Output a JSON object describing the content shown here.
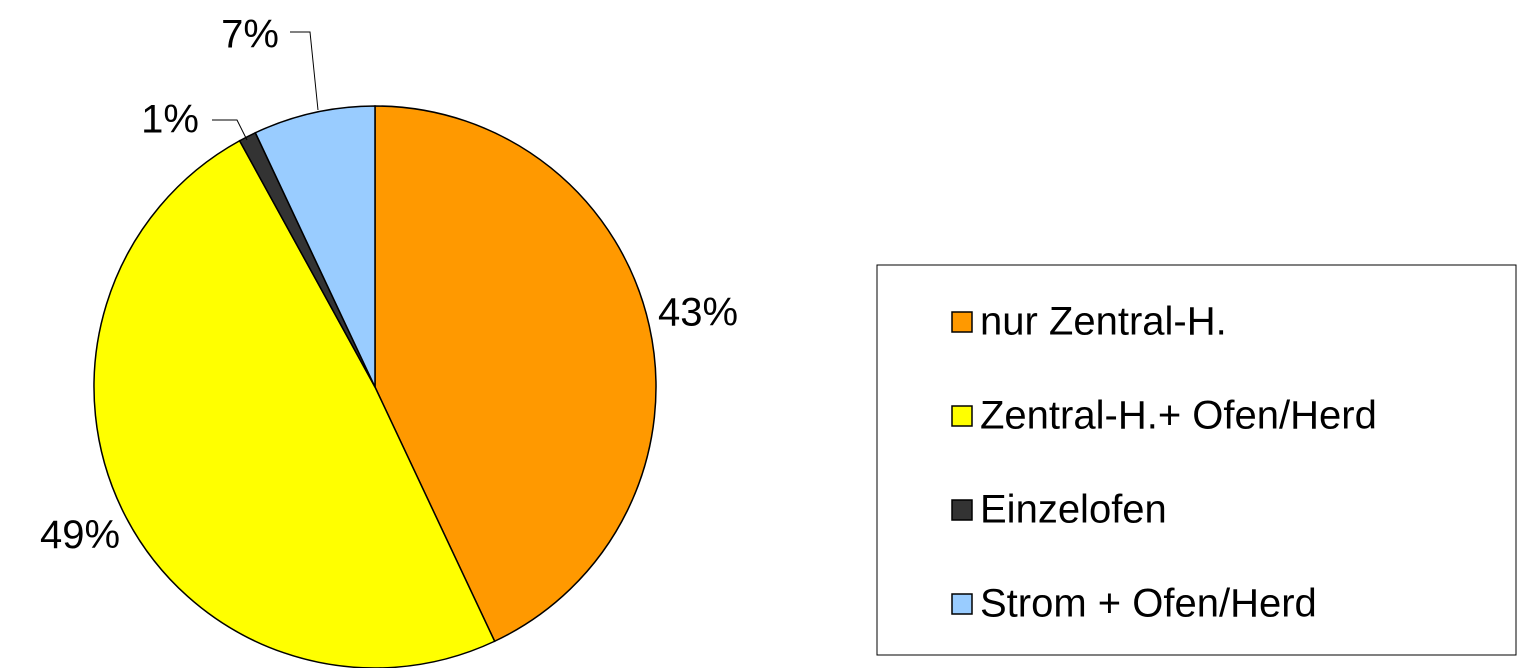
{
  "chart_data": {
    "type": "pie",
    "categories": [
      "nur Zentral-H.",
      "Zentral-H.+ Ofen/Herd",
      "Einzelofen",
      "Strom + Ofen/Herd"
    ],
    "values": [
      43,
      49,
      1,
      7
    ],
    "value_labels": [
      "43%",
      "49%",
      "1%",
      "7%"
    ],
    "colors": [
      "#ff9900",
      "#ffff00",
      "#333333",
      "#99ccff"
    ],
    "legend": "right"
  }
}
